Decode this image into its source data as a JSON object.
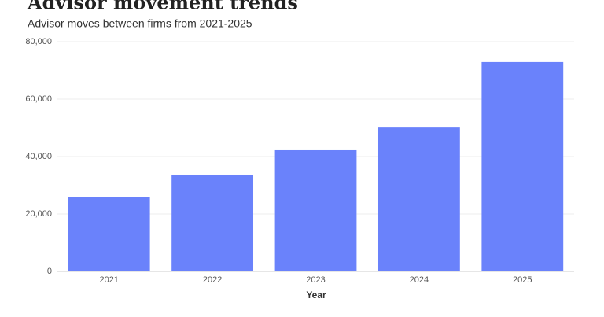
{
  "chart_data": {
    "type": "bar",
    "title": "Advisor movement trends",
    "subtitle": "Advisor moves between firms from 2021-2025",
    "x_label": "Year",
    "categories": [
      "2021",
      "2022",
      "2023",
      "2024",
      "2025"
    ],
    "values": [
      26000,
      33700,
      42200,
      50100,
      72900
    ],
    "color": "#6a82fb",
    "ylim": [
      0,
      80000
    ],
    "yticks": [
      0,
      {
        "value": 20000,
        "label": "20,000"
      },
      {
        "value": 40000,
        "label": "40,000"
      },
      {
        "value": 60000,
        "label": "60,000"
      },
      {
        "value": 80000,
        "label": "80,000"
      }
    ],
    "grid": true
  }
}
